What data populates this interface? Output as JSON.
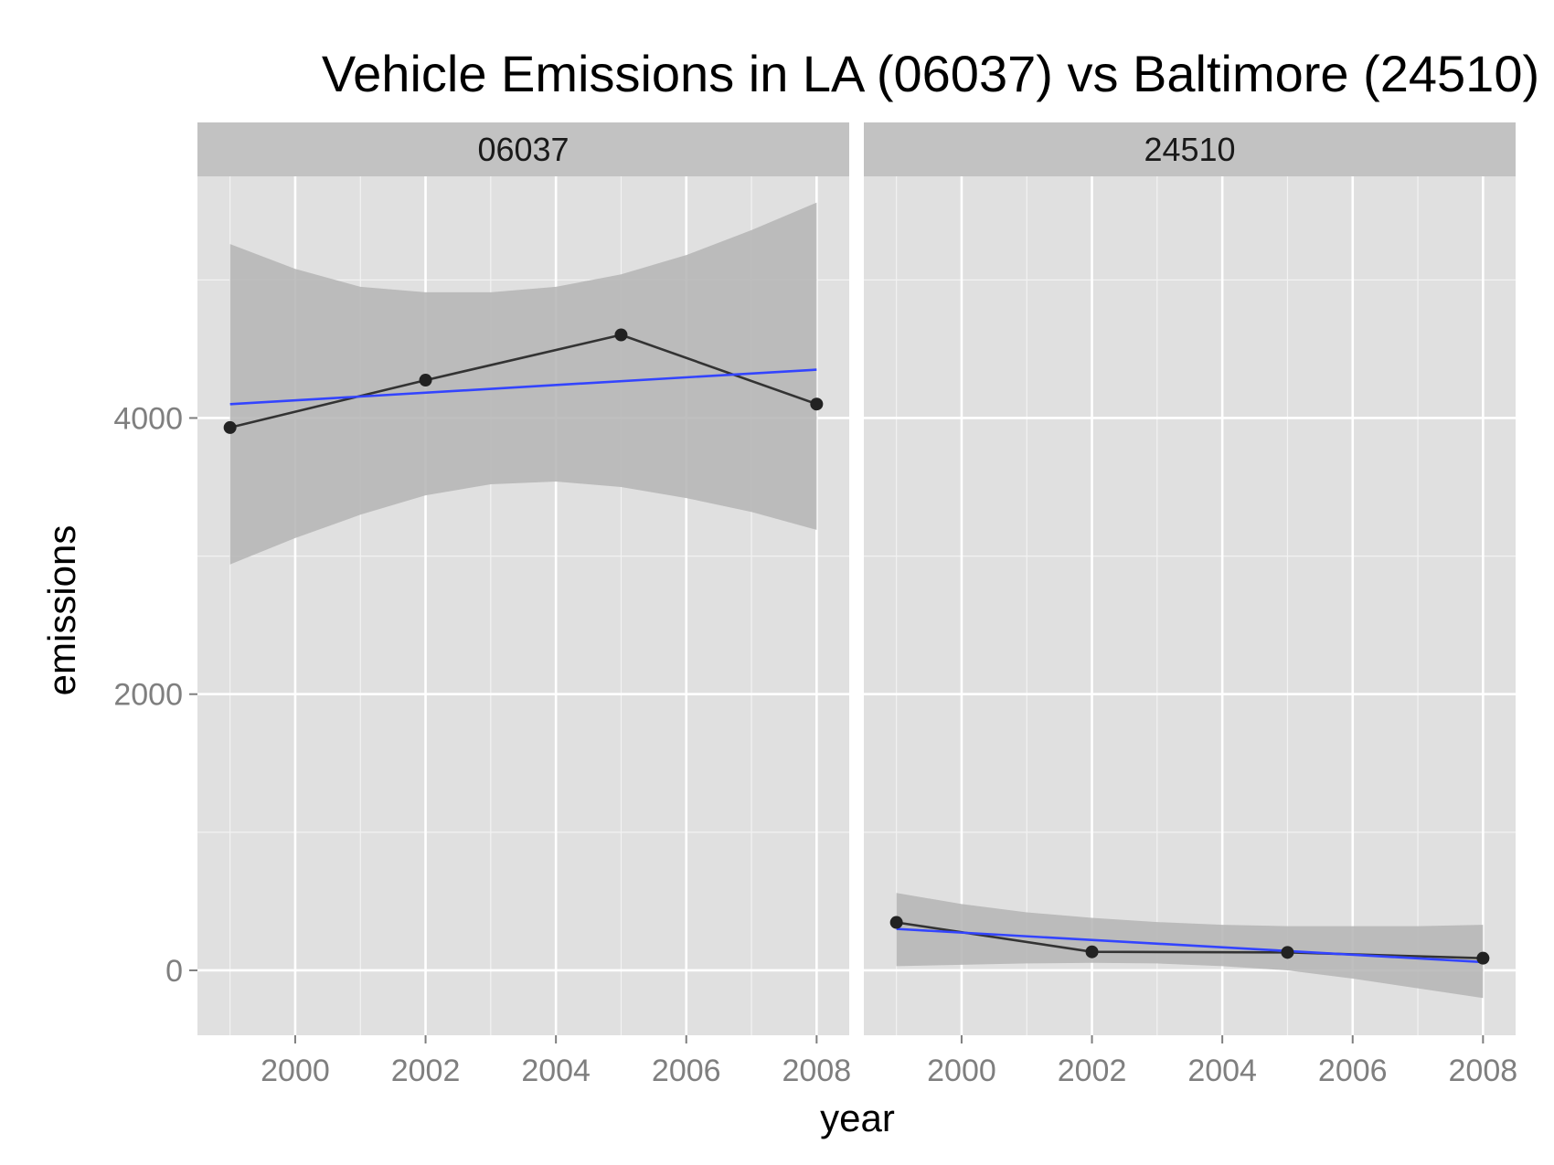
{
  "chart_data": {
    "type": "line",
    "title": "Vehicle Emissions in LA (06037) vs Baltimore (24510)",
    "xlabel": "year",
    "ylabel": "emissions",
    "xlim": [
      1998.5,
      2008.5
    ],
    "ylim": [
      -470,
      5750
    ],
    "x_ticks": [
      2000,
      2002,
      2004,
      2006,
      2008
    ],
    "x_tick_labels": [
      "2000",
      "2002",
      "2004",
      "2006",
      "2008"
    ],
    "y_ticks": [
      0,
      2000,
      4000
    ],
    "y_tick_labels": [
      "0",
      "2000",
      "4000"
    ],
    "grid": true,
    "legend": "none",
    "colors": {
      "panel_background": "#e0e0e0",
      "strip_background": "#c2c2c2",
      "grid": "#ffffff",
      "data_line": "#333333",
      "fit_line": "#3344ff",
      "ribbon": "#b4b4b4"
    },
    "facets": [
      {
        "label": "06037",
        "x": [
          1999,
          2002,
          2005,
          2008
        ],
        "y": [
          3931,
          4274,
          4602,
          4101
        ],
        "fit": {
          "x": [
            1999,
            2008
          ],
          "y": [
            4100,
            4350
          ]
        },
        "ribbon": {
          "x": [
            1999,
            2000,
            2001,
            2002,
            2003,
            2004,
            2005,
            2006,
            2007,
            2008
          ],
          "lower": [
            2940,
            3130,
            3300,
            3440,
            3520,
            3540,
            3500,
            3420,
            3320,
            3190
          ],
          "upper": [
            5260,
            5080,
            4950,
            4910,
            4910,
            4950,
            5040,
            5180,
            5360,
            5560
          ]
        }
      },
      {
        "label": "24510",
        "x": [
          1999,
          2002,
          2005,
          2008
        ],
        "y": [
          347,
          134,
          130,
          88
        ],
        "fit": {
          "x": [
            1999,
            2008
          ],
          "y": [
            300,
            60
          ]
        },
        "ribbon": {
          "x": [
            1999,
            2000,
            2001,
            2002,
            2003,
            2004,
            2005,
            2006,
            2007,
            2008
          ],
          "lower": [
            30,
            40,
            50,
            55,
            50,
            30,
            0,
            -60,
            -130,
            -200
          ],
          "upper": [
            560,
            480,
            420,
            380,
            350,
            330,
            320,
            320,
            320,
            330
          ]
        }
      }
    ]
  }
}
